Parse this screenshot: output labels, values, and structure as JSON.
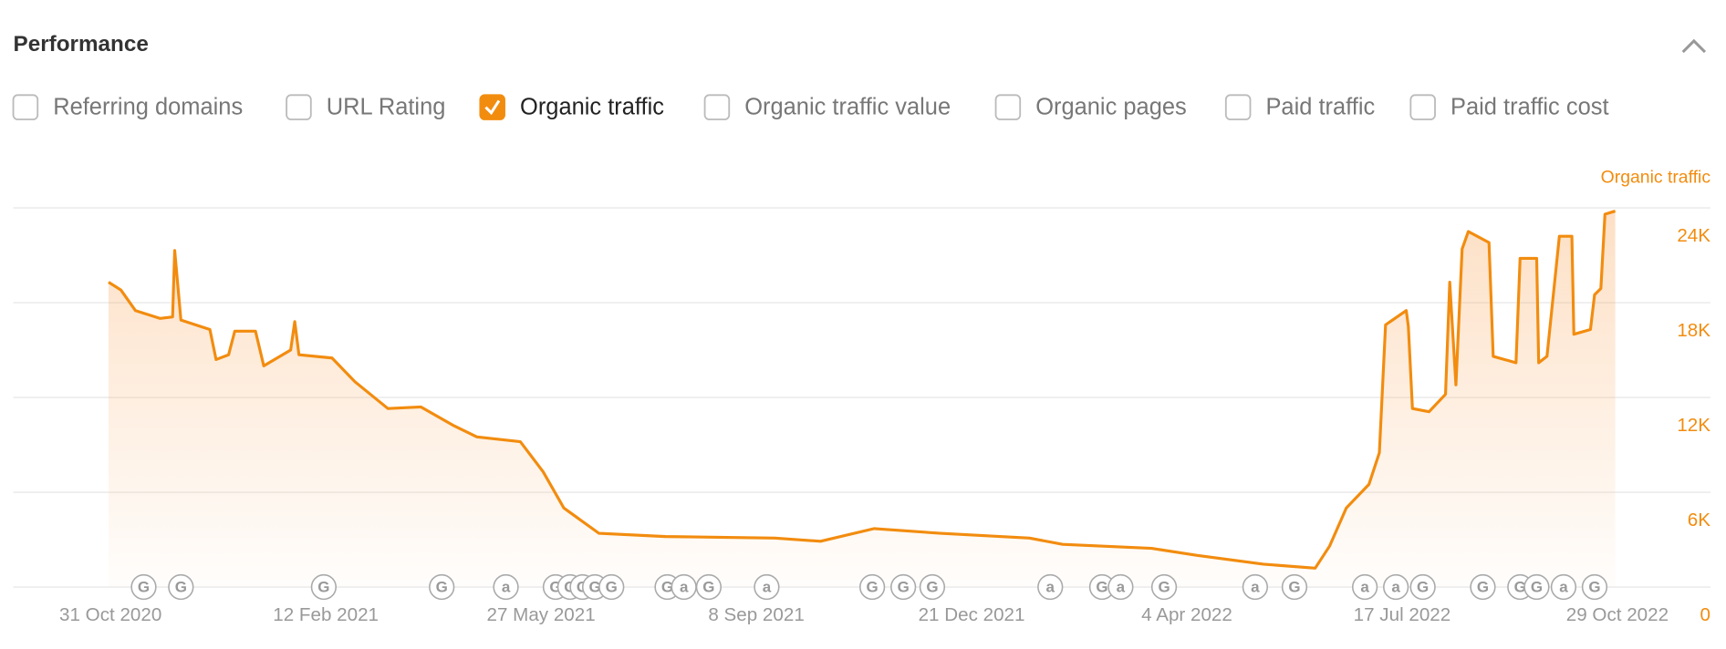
{
  "header": {
    "title": "Performance"
  },
  "metrics": [
    {
      "label": "Referring domains",
      "checked": false
    },
    {
      "label": "URL Rating",
      "checked": false
    },
    {
      "label": "Organic traffic",
      "checked": true
    },
    {
      "label": "Organic traffic value",
      "checked": false
    },
    {
      "label": "Organic pages",
      "checked": false
    },
    {
      "label": "Paid traffic",
      "checked": false
    },
    {
      "label": "Paid traffic cost",
      "checked": false
    }
  ],
  "chart_data": {
    "type": "area-line",
    "x": [
      "2020-10-30",
      "2020-11-05",
      "2020-11-12",
      "2020-11-24",
      "2020-11-30",
      "2020-12-01",
      "2020-12-04",
      "2020-12-18",
      "2020-12-21",
      "2020-12-27",
      "2020-12-30",
      "2021-01-09",
      "2021-01-13",
      "2021-01-26",
      "2021-01-28",
      "2021-01-30",
      "2021-02-15",
      "2021-02-26",
      "2021-03-14",
      "2021-03-30",
      "2021-04-15",
      "2021-04-26",
      "2021-05-17",
      "2021-05-28",
      "2021-06-07",
      "2021-06-24",
      "2021-07-26",
      "2021-09-17",
      "2021-10-09",
      "2021-11-04",
      "2021-12-06",
      "2022-01-18",
      "2022-02-03",
      "2022-03-18",
      "2022-04-09",
      "2022-05-11",
      "2022-06-05",
      "2022-06-12",
      "2022-06-20",
      "2022-07-01",
      "2022-07-06",
      "2022-07-09",
      "2022-07-19",
      "2022-07-20",
      "2022-07-22",
      "2022-07-30",
      "2022-08-07",
      "2022-08-09",
      "2022-08-12",
      "2022-08-15",
      "2022-08-18",
      "2022-08-28",
      "2022-08-30",
      "2022-09-10",
      "2022-09-12",
      "2022-09-20",
      "2022-09-21",
      "2022-09-25",
      "2022-10-01",
      "2022-10-07",
      "2022-10-08",
      "2022-10-16",
      "2022-10-18",
      "2022-10-21",
      "2022-10-23",
      "2022-10-28"
    ],
    "series": [
      {
        "name": "Organic traffic",
        "color": "#f28c0f",
        "values": [
          19300,
          18800,
          17500,
          17000,
          17100,
          21300,
          16900,
          16300,
          14400,
          14700,
          16200,
          16200,
          14000,
          15000,
          16800,
          14700,
          14500,
          13000,
          11300,
          11400,
          10200,
          9500,
          9200,
          7300,
          5000,
          3400,
          3200,
          3100,
          2900,
          3700,
          3400,
          3100,
          2700,
          2450,
          2000,
          1450,
          1200,
          2600,
          5000,
          6500,
          8500,
          16600,
          17500,
          16500,
          11300,
          11100,
          12200,
          19300,
          12800,
          21400,
          22500,
          21800,
          14600,
          14200,
          20800,
          20800,
          14200,
          14600,
          22200,
          22200,
          16000,
          16300,
          18500,
          18900,
          23600,
          23800
        ]
      }
    ],
    "xlim": [
      "2020-09-14",
      "2022-12-13"
    ],
    "xticks": [
      {
        "value": "2020-10-31",
        "label": "31 Oct 2020"
      },
      {
        "value": "2021-02-12",
        "label": "12 Feb 2021"
      },
      {
        "value": "2021-05-27",
        "label": "27 May 2021"
      },
      {
        "value": "2021-09-08",
        "label": "8 Sep 2021"
      },
      {
        "value": "2021-12-21",
        "label": "21 Dec 2021"
      },
      {
        "value": "2022-04-04",
        "label": "4 Apr 2022"
      },
      {
        "value": "2022-07-17",
        "label": "17 Jul 2022"
      },
      {
        "value": "2022-10-29",
        "label": "29 Oct 2022"
      }
    ],
    "ylim": [
      0,
      24000
    ],
    "yticks": [
      0,
      {
        "value": 6000,
        "label": "6K"
      },
      {
        "value": 12000,
        "label": "12K"
      },
      {
        "value": 18000,
        "label": "18K"
      },
      {
        "value": 24000,
        "label": "24K"
      }
    ],
    "grid": true,
    "events": [
      {
        "x": "2020-11-16",
        "label": "G"
      },
      {
        "x": "2020-12-04",
        "label": "G"
      },
      {
        "x": "2021-02-11",
        "label": "G"
      },
      {
        "x": "2021-04-09",
        "label": "G"
      },
      {
        "x": "2021-05-10",
        "label": "a"
      },
      {
        "x": "2021-06-03",
        "label": "G"
      },
      {
        "x": "2021-06-10",
        "label": "G"
      },
      {
        "x": "2021-06-16",
        "label": "G"
      },
      {
        "x": "2021-06-22",
        "label": "G"
      },
      {
        "x": "2021-06-30",
        "label": "G"
      },
      {
        "x": "2021-07-27",
        "label": "G"
      },
      {
        "x": "2021-08-04",
        "label": "a"
      },
      {
        "x": "2021-08-16",
        "label": "G"
      },
      {
        "x": "2021-09-13",
        "label": "a"
      },
      {
        "x": "2021-11-03",
        "label": "G"
      },
      {
        "x": "2021-11-18",
        "label": "G"
      },
      {
        "x": "2021-12-02",
        "label": "G"
      },
      {
        "x": "2022-01-28",
        "label": "a"
      },
      {
        "x": "2022-02-22",
        "label": "G"
      },
      {
        "x": "2022-03-03",
        "label": "a"
      },
      {
        "x": "2022-03-24",
        "label": "G"
      },
      {
        "x": "2022-05-07",
        "label": "a"
      },
      {
        "x": "2022-05-26",
        "label": "G"
      },
      {
        "x": "2022-06-29",
        "label": "a"
      },
      {
        "x": "2022-07-14",
        "label": "a"
      },
      {
        "x": "2022-07-27",
        "label": "G"
      },
      {
        "x": "2022-08-25",
        "label": "G"
      },
      {
        "x": "2022-09-12",
        "label": "G"
      },
      {
        "x": "2022-09-20",
        "label": "G"
      },
      {
        "x": "2022-10-03",
        "label": "a"
      },
      {
        "x": "2022-10-18",
        "label": "G"
      }
    ]
  }
}
